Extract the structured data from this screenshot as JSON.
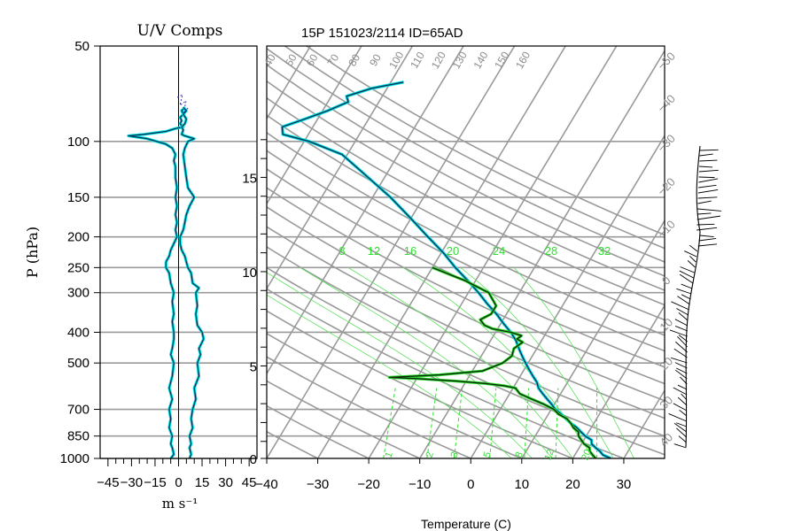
{
  "chart_data": [
    {
      "type": "line",
      "title": "U/V Comps",
      "xlabel": "m s⁻¹",
      "ylabel": "P (hPa)",
      "xlim": [
        -50,
        50
      ],
      "ylim": [
        1000,
        50
      ],
      "y_scale": "log",
      "x_ticks": [
        "−45",
        "−30",
        "−15",
        "0",
        "15",
        "30",
        "45"
      ],
      "y_ticks": [
        "50",
        "100",
        "150",
        "200",
        "250",
        "300",
        "400",
        "500",
        "700",
        "850",
        "1000"
      ],
      "series": [
        {
          "key": "u",
          "values": [
            [
              1000,
              -5
            ],
            [
              970,
              -3
            ],
            [
              925,
              -4
            ],
            [
              900,
              -5
            ],
            [
              850,
              -4
            ],
            [
              800,
              -6
            ],
            [
              750,
              -5
            ],
            [
              700,
              -6
            ],
            [
              650,
              -4
            ],
            [
              600,
              -6
            ],
            [
              550,
              -4
            ],
            [
              500,
              -3
            ],
            [
              470,
              -5
            ],
            [
              450,
              -4
            ],
            [
              420,
              -3
            ],
            [
              400,
              -3
            ],
            [
              370,
              -4
            ],
            [
              350,
              -3
            ],
            [
              320,
              -4
            ],
            [
              300,
              -3
            ],
            [
              280,
              -5
            ],
            [
              260,
              -6
            ],
            [
              250,
              -8
            ],
            [
              240,
              -8
            ],
            [
              230,
              -6
            ],
            [
              220,
              -5
            ],
            [
              210,
              -3
            ],
            [
              200,
              -1
            ],
            [
              190,
              -2
            ],
            [
              180,
              -1
            ],
            [
              170,
              -2
            ],
            [
              160,
              -1
            ],
            [
              150,
              -2
            ],
            [
              140,
              -1
            ],
            [
              130,
              -2
            ],
            [
              120,
              -2
            ],
            [
              115,
              -3
            ],
            [
              110,
              -2
            ],
            [
              105,
              -4
            ],
            [
              102,
              -8
            ],
            [
              100,
              -14
            ],
            [
              98,
              -20
            ],
            [
              96,
              -32
            ],
            [
              95,
              -22
            ],
            [
              93,
              -8
            ],
            [
              91,
              -2
            ],
            [
              90,
              3
            ],
            [
              88,
              1
            ],
            [
              86,
              2
            ],
            [
              84,
              1
            ],
            [
              82,
              3
            ],
            [
              80,
              2
            ],
            [
              78,
              4
            ]
          ]
        },
        {
          "key": "v",
          "values": [
            [
              1000,
              7
            ],
            [
              970,
              8
            ],
            [
              925,
              7
            ],
            [
              900,
              8
            ],
            [
              850,
              7
            ],
            [
              800,
              9
            ],
            [
              750,
              8
            ],
            [
              700,
              9
            ],
            [
              650,
              11
            ],
            [
              600,
              10
            ],
            [
              550,
              13
            ],
            [
              500,
              12
            ],
            [
              470,
              14
            ],
            [
              450,
              13
            ],
            [
              420,
              16
            ],
            [
              400,
              15
            ],
            [
              380,
              12
            ],
            [
              350,
              11
            ],
            [
              330,
              12
            ],
            [
              300,
              11
            ],
            [
              290,
              13
            ],
            [
              280,
              9
            ],
            [
              260,
              8
            ],
            [
              250,
              6
            ],
            [
              240,
              5
            ],
            [
              230,
              4
            ],
            [
              220,
              2
            ],
            [
              210,
              1
            ],
            [
              200,
              1
            ],
            [
              190,
              3
            ],
            [
              180,
              4
            ],
            [
              170,
              5
            ],
            [
              160,
              7
            ],
            [
              150,
              10
            ],
            [
              145,
              8
            ],
            [
              140,
              6
            ],
            [
              130,
              5
            ],
            [
              120,
              4
            ],
            [
              110,
              3
            ],
            [
              105,
              4
            ],
            [
              100,
              6
            ],
            [
              98,
              10
            ],
            [
              96,
              4
            ],
            [
              95,
              2
            ],
            [
              92,
              3
            ],
            [
              90,
              2
            ],
            [
              88,
              4
            ],
            [
              85,
              5
            ],
            [
              82,
              3
            ],
            [
              80,
              5
            ],
            [
              78,
              3
            ]
          ]
        }
      ]
    },
    {
      "type": "line",
      "title": "15P 151023/2114 ID=65AD",
      "xlabel": "Temperature (C)",
      "xlim": [
        -40,
        38
      ],
      "ylim": [
        1000,
        50
      ],
      "y_scale": "log",
      "skew": true,
      "x_ticks": [
        "−40",
        "−30",
        "−20",
        "−10",
        "0",
        "10",
        "20",
        "30"
      ],
      "height_ticks_km": [
        "0",
        "5",
        "10",
        "15"
      ],
      "dry_adiabat_labels": [
        "40",
        "50",
        "60",
        "70",
        "80",
        "90",
        "100",
        "110",
        "120",
        "130",
        "140",
        "150",
        "160"
      ],
      "isotherm_labels": [
        "−50",
        "−40",
        "−30",
        "−20",
        "−10",
        "0",
        "10",
        "20",
        "30",
        "40"
      ],
      "moist_adiabat_labels": [
        "8",
        "12",
        "16",
        "20",
        "24",
        "28",
        "32"
      ],
      "mixing_ratio_labels": [
        "1",
        "2",
        "3",
        "5",
        "8",
        "12",
        "20"
      ],
      "series": [
        {
          "key": "temperature",
          "values": [
            [
              1000,
              27.5
            ],
            [
              975,
              25.5
            ],
            [
              950,
              24.5
            ],
            [
              925,
              23.2
            ],
            [
              900,
              22
            ],
            [
              875,
              21.5
            ],
            [
              850,
              19.8
            ],
            [
              825,
              18.5
            ],
            [
              800,
              17.2
            ],
            [
              775,
              15.5
            ],
            [
              750,
              14
            ],
            [
              725,
              12.5
            ],
            [
              700,
              10.8
            ],
            [
              675,
              9.5
            ],
            [
              650,
              8
            ],
            [
              625,
              6.5
            ],
            [
              600,
              5
            ],
            [
              575,
              4
            ],
            [
              550,
              2.5
            ],
            [
              525,
              1
            ],
            [
              500,
              -0.5
            ],
            [
              475,
              -2
            ],
            [
              450,
              -3.5
            ],
            [
              425,
              -5
            ],
            [
              400,
              -7
            ],
            [
              375,
              -9.5
            ],
            [
              350,
              -12
            ],
            [
              325,
              -15
            ],
            [
              300,
              -18
            ],
            [
              275,
              -21.5
            ],
            [
              250,
              -25.5
            ],
            [
              225,
              -29.5
            ],
            [
              200,
              -34.5
            ],
            [
              175,
              -40
            ],
            [
              150,
              -46.5
            ],
            [
              125,
              -55
            ],
            [
              110,
              -61
            ],
            [
              100,
              -69
            ],
            [
              95,
              -75
            ],
            [
              90,
              -76
            ],
            [
              85,
              -72.5
            ],
            [
              80,
              -69
            ],
            [
              75,
              -66
            ],
            [
              72,
              -67
            ],
            [
              68,
              -63
            ],
            [
              65,
              -57.5
            ]
          ]
        },
        {
          "key": "dewpoint",
          "values": [
            [
              1000,
              24.5
            ],
            [
              975,
              23.5
            ],
            [
              950,
              22.5
            ],
            [
              925,
              22
            ],
            [
              900,
              20.5
            ],
            [
              875,
              19.5
            ],
            [
              850,
              18.5
            ],
            [
              825,
              18
            ],
            [
              800,
              16.5
            ],
            [
              775,
              15.5
            ],
            [
              750,
              14.2
            ],
            [
              725,
              12
            ],
            [
              700,
              10.5
            ],
            [
              675,
              8
            ],
            [
              650,
              5
            ],
            [
              625,
              2
            ],
            [
              600,
              0.5
            ],
            [
              590,
              -2
            ],
            [
              580,
              -6
            ],
            [
              570,
              -12
            ],
            [
              560,
              -20
            ],
            [
              555,
              -25.5
            ],
            [
              545,
              -16
            ],
            [
              530,
              -8
            ],
            [
              500,
              -5
            ],
            [
              475,
              -4
            ],
            [
              450,
              -4.5
            ],
            [
              430,
              -3.5
            ],
            [
              420,
              -5
            ],
            [
              410,
              -4.5
            ],
            [
              400,
              -7
            ],
            [
              390,
              -11
            ],
            [
              380,
              -13
            ],
            [
              365,
              -14.5
            ],
            [
              350,
              -13
            ],
            [
              330,
              -13
            ],
            [
              300,
              -16
            ],
            [
              275,
              -22
            ],
            [
              250,
              -30
            ]
          ]
        }
      ],
      "wind_barbs_present": true
    }
  ]
}
